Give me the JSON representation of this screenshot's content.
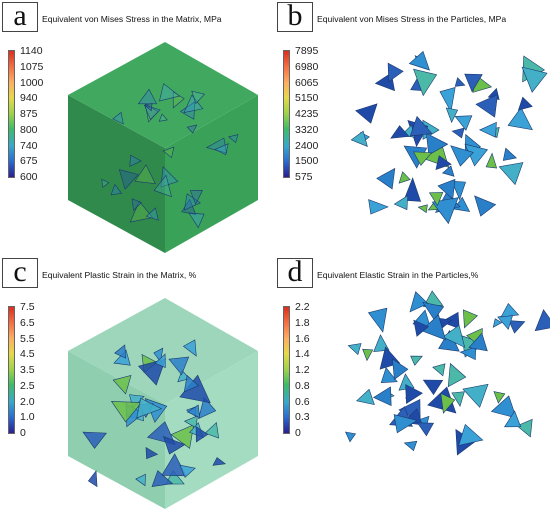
{
  "panels": [
    {
      "letter": "a",
      "title": "Equivalent von Mises Stress in the Matrix, MPa",
      "scale": [
        "1140",
        "1075",
        "1000",
        "940",
        "875",
        "800",
        "740",
        "675",
        "600"
      ],
      "kind": "cube",
      "cube_colors": {
        "left": "#2f8a4c",
        "right": "#3aa258",
        "top": "#41a860"
      }
    },
    {
      "letter": "b",
      "title": "Equivalent von Mises Stress in the Particles, MPa",
      "scale": [
        "7895",
        "6980",
        "6065",
        "5150",
        "4235",
        "3320",
        "2400",
        "1500",
        "575"
      ],
      "kind": "particles"
    },
    {
      "letter": "c",
      "title": "Equivalent Plastic Strain in the Matrix, %",
      "scale": [
        "7.5",
        "6.5",
        "5.5",
        "4.5",
        "3.5",
        "2.5",
        "2.0",
        "1.0",
        "0"
      ],
      "kind": "cube",
      "cube_colors": {
        "left": "#8fcfb0",
        "right": "#a3dcc0",
        "top": "#9dd6bb"
      }
    },
    {
      "letter": "d",
      "title": "Equivalent Elastic Strain in the Particles,%",
      "scale": [
        "2.2",
        "1.8",
        "1.6",
        "1.4",
        "1.2",
        "0.8",
        "0.6",
        "0.3",
        "0"
      ],
      "kind": "particles"
    }
  ]
}
